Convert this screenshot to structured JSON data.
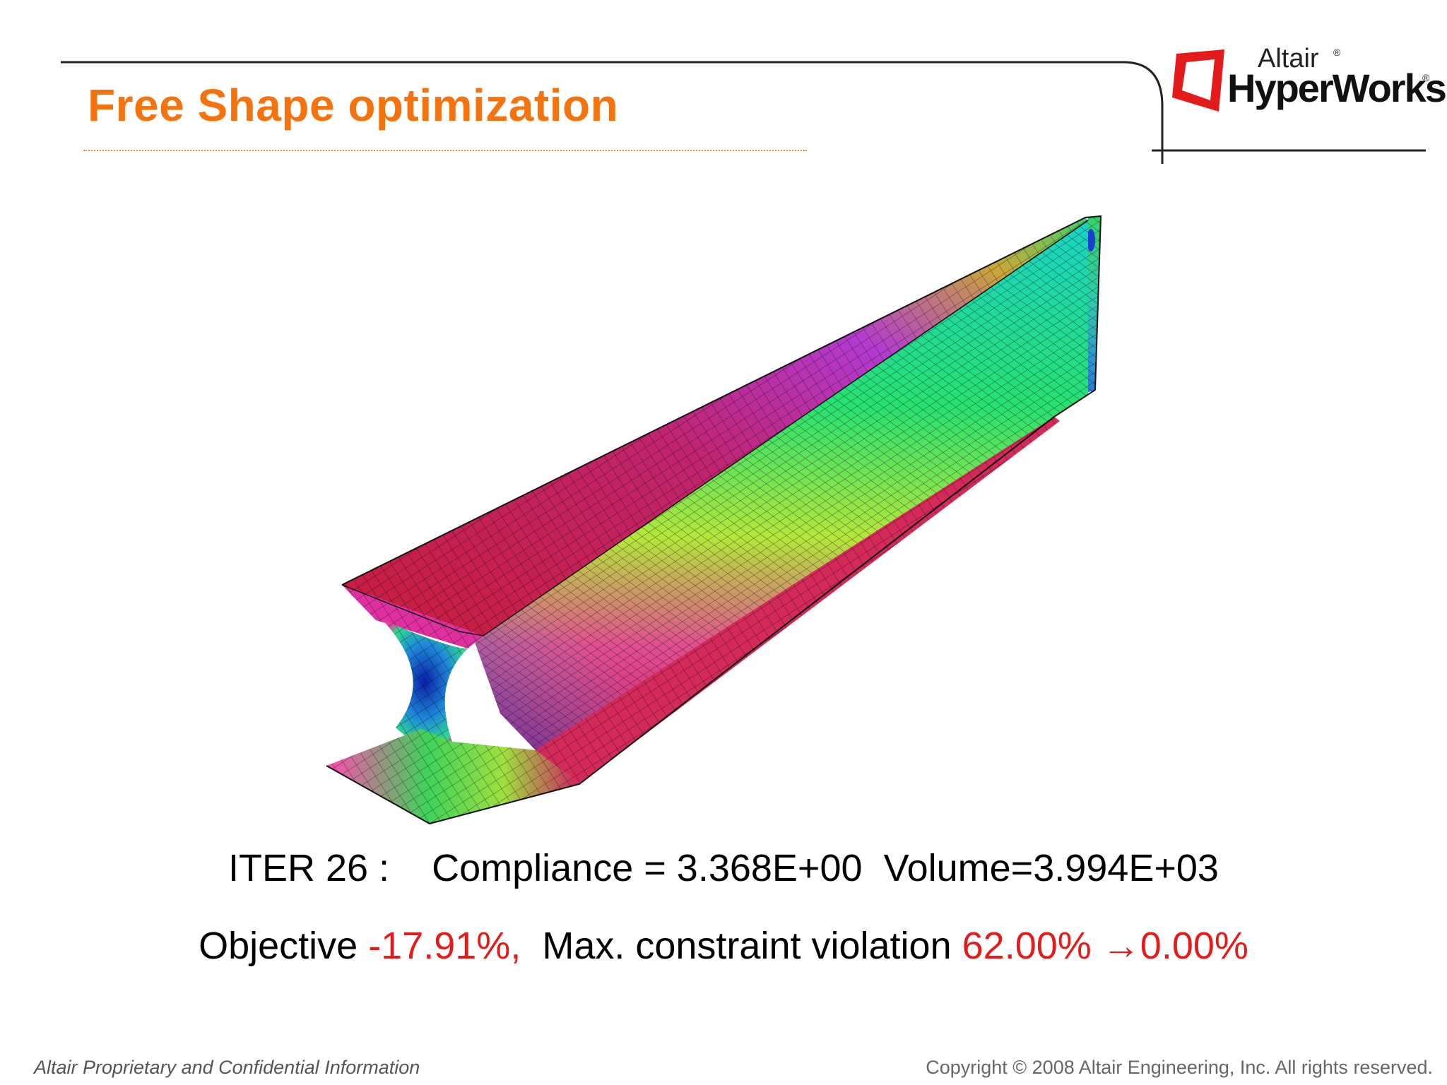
{
  "slide": {
    "title": "Free Shape optimization"
  },
  "logo": {
    "brand_small": "Altair",
    "brand_large": "HyperWorks",
    "registered_mark": "®",
    "icon": "altair-logo-icon",
    "accent_color": "#e31b1b"
  },
  "figure": {
    "icon": "fea-beam-contour-image"
  },
  "results": {
    "iter_label": "ITER 26 :",
    "compliance": "Compliance = 3.368E+00",
    "volume": "Volume=3.994E+03",
    "objective_label": "Objective",
    "objective_value": "-17.91%,",
    "violation_label": "Max. constraint violation",
    "violation_before": "62.00%",
    "arrow": "→",
    "violation_after": "0.00%"
  },
  "footer": {
    "left": "Altair Proprietary and Confidential Information",
    "right": "Copyright © 2008 Altair Engineering, Inc. All rights reserved."
  },
  "colors": {
    "title": "#f5730f",
    "highlight": "#e31b1b"
  }
}
